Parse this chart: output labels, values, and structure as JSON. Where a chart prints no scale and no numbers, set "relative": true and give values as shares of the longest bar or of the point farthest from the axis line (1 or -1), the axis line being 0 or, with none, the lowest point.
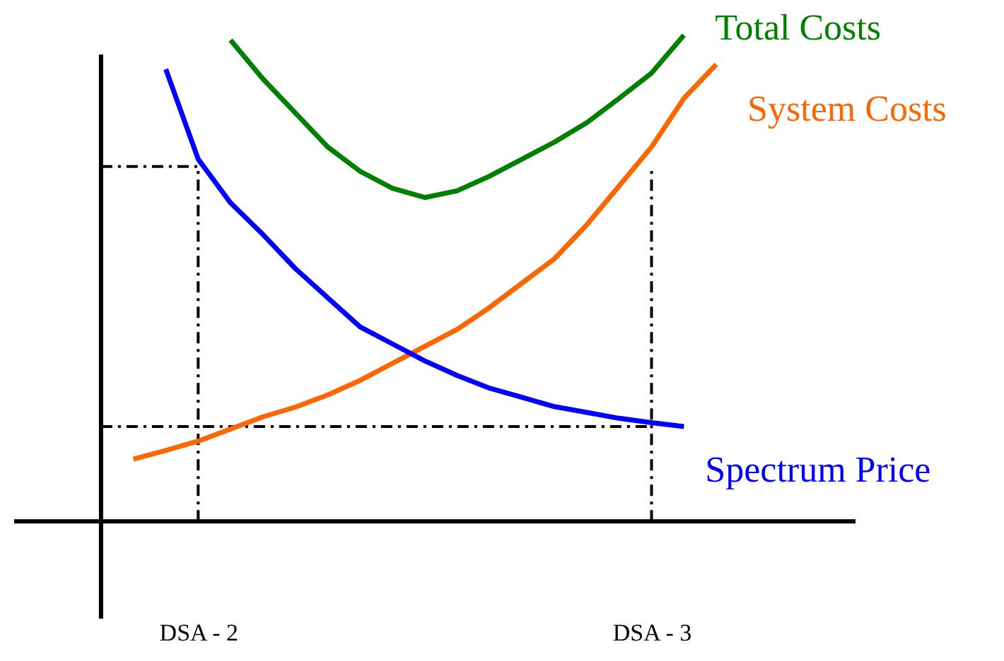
{
  "chart_data": {
    "type": "line",
    "relative": true,
    "tick_labels": "x",
    "categories": [
      null,
      null,
      null,
      "DSA - 2",
      null,
      null,
      null,
      null,
      null,
      null,
      null,
      null,
      null,
      null,
      null,
      null,
      null,
      "DSA - 3",
      null,
      null
    ],
    "series": [
      {
        "name": "Total Costs",
        "color": "#008000",
        "values": [
          null,
          null,
          null,
          null,
          0.99,
          0.91,
          0.84,
          0.77,
          0.72,
          0.685,
          0.666,
          0.68,
          0.71,
          0.745,
          0.78,
          0.82,
          0.87,
          0.922,
          1.0,
          null
        ]
      },
      {
        "name": "System Costs",
        "color": "#ff6600",
        "values": [
          null,
          0.128,
          0.146,
          0.165,
          0.19,
          0.215,
          0.235,
          0.26,
          0.29,
          0.325,
          0.36,
          0.395,
          0.44,
          0.49,
          0.54,
          0.61,
          0.69,
          0.77,
          0.87,
          0.94
        ]
      },
      {
        "name": "Spectrum Price",
        "color": "#0000ff",
        "values": [
          null,
          null,
          0.93,
          0.745,
          0.655,
          0.59,
          0.52,
          0.46,
          0.4,
          0.365,
          0.33,
          0.3,
          0.274,
          0.255,
          0.236,
          0.224,
          0.212,
          0.203,
          0.195,
          null
        ]
      }
    ],
    "ref_lines": [
      {
        "axis": "y",
        "value": 0.73,
        "color": "#000000",
        "line_style": "dashed"
      },
      {
        "axis": "x",
        "value": "DSA - 2",
        "color": "#000000",
        "line_style": "dashed"
      },
      {
        "axis": "y",
        "value": 0.195,
        "color": "#000000",
        "line_style": "dashed"
      },
      {
        "axis": "x",
        "value": "DSA - 3",
        "color": "#000000",
        "line_style": "dashed"
      }
    ]
  }
}
